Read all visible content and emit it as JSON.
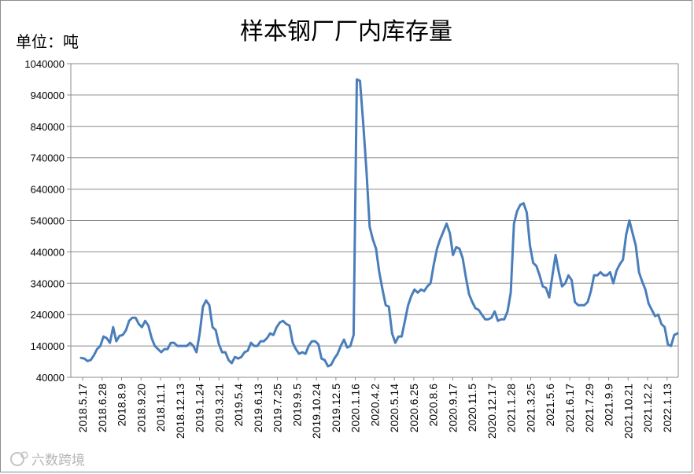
{
  "chart_data": {
    "type": "line",
    "title": "样本钢厂厂内库存量",
    "unit_label": "单位：吨",
    "ylim": [
      40000,
      1040000
    ],
    "yticks": [
      "1040000",
      "940000",
      "840000",
      "740000",
      "640000",
      "540000",
      "440000",
      "340000",
      "240000",
      "140000",
      "40000"
    ],
    "xticks": [
      "2018.5.17",
      "2018.6.28",
      "2018.8.9",
      "2018.9.20",
      "2018.11.1",
      "2018.12.13",
      "2019.1.24",
      "2019.3.21",
      "2019.5.4",
      "2019.6.13",
      "2019.7.25",
      "2019.9.5",
      "2019.10.24",
      "2019.12.5",
      "2020.1.16",
      "2020.4.2",
      "2020.5.14",
      "2020.6.25",
      "2020.8.6",
      "2020.9.17",
      "2020.11.5",
      "2020.12.17",
      "2021.1.28",
      "2021.3.25",
      "2021.5.6",
      "2021.6.17",
      "2021.7.29",
      "2021.9.9",
      "2021.10.21",
      "2021.12.2",
      "2022.1.13"
    ],
    "grid": true,
    "series": [
      {
        "color": "#4a7ebb",
        "values": [
          102000,
          100000,
          92000,
          95000,
          110000,
          130000,
          140000,
          170000,
          165000,
          150000,
          200000,
          155000,
          172000,
          175000,
          190000,
          220000,
          230000,
          230000,
          210000,
          200000,
          220000,
          205000,
          165000,
          140000,
          130000,
          120000,
          130000,
          130000,
          150000,
          150000,
          140000,
          140000,
          140000,
          140000,
          150000,
          140000,
          120000,
          180000,
          265000,
          285000,
          270000,
          200000,
          190000,
          145000,
          120000,
          120000,
          95000,
          85000,
          105000,
          100000,
          105000,
          120000,
          125000,
          150000,
          140000,
          140000,
          155000,
          155000,
          165000,
          180000,
          175000,
          200000,
          215000,
          220000,
          210000,
          205000,
          150000,
          130000,
          115000,
          120000,
          115000,
          140000,
          155000,
          155000,
          145000,
          100000,
          95000,
          75000,
          80000,
          100000,
          115000,
          140000,
          160000,
          135000,
          140000,
          175000,
          990000,
          985000,
          850000,
          700000,
          520000,
          480000,
          450000,
          375000,
          320000,
          270000,
          265000,
          180000,
          150000,
          170000,
          170000,
          220000,
          270000,
          300000,
          320000,
          310000,
          320000,
          315000,
          330000,
          340000,
          400000,
          450000,
          480000,
          505000,
          530000,
          500000,
          430000,
          455000,
          450000,
          420000,
          360000,
          305000,
          280000,
          260000,
          255000,
          240000,
          225000,
          225000,
          230000,
          250000,
          220000,
          225000,
          225000,
          250000,
          310000,
          530000,
          570000,
          590000,
          595000,
          565000,
          460000,
          405000,
          395000,
          365000,
          330000,
          325000,
          295000,
          365000,
          430000,
          375000,
          330000,
          340000,
          365000,
          350000,
          280000,
          270000,
          270000,
          270000,
          280000,
          315000,
          365000,
          365000,
          375000,
          365000,
          365000,
          375000,
          340000,
          380000,
          400000,
          415000,
          495000,
          540000,
          500000,
          460000,
          375000,
          345000,
          320000,
          275000,
          255000,
          235000,
          240000,
          210000,
          200000,
          145000,
          140000,
          175000,
          180000
        ]
      }
    ]
  },
  "watermark": "六数跨境"
}
